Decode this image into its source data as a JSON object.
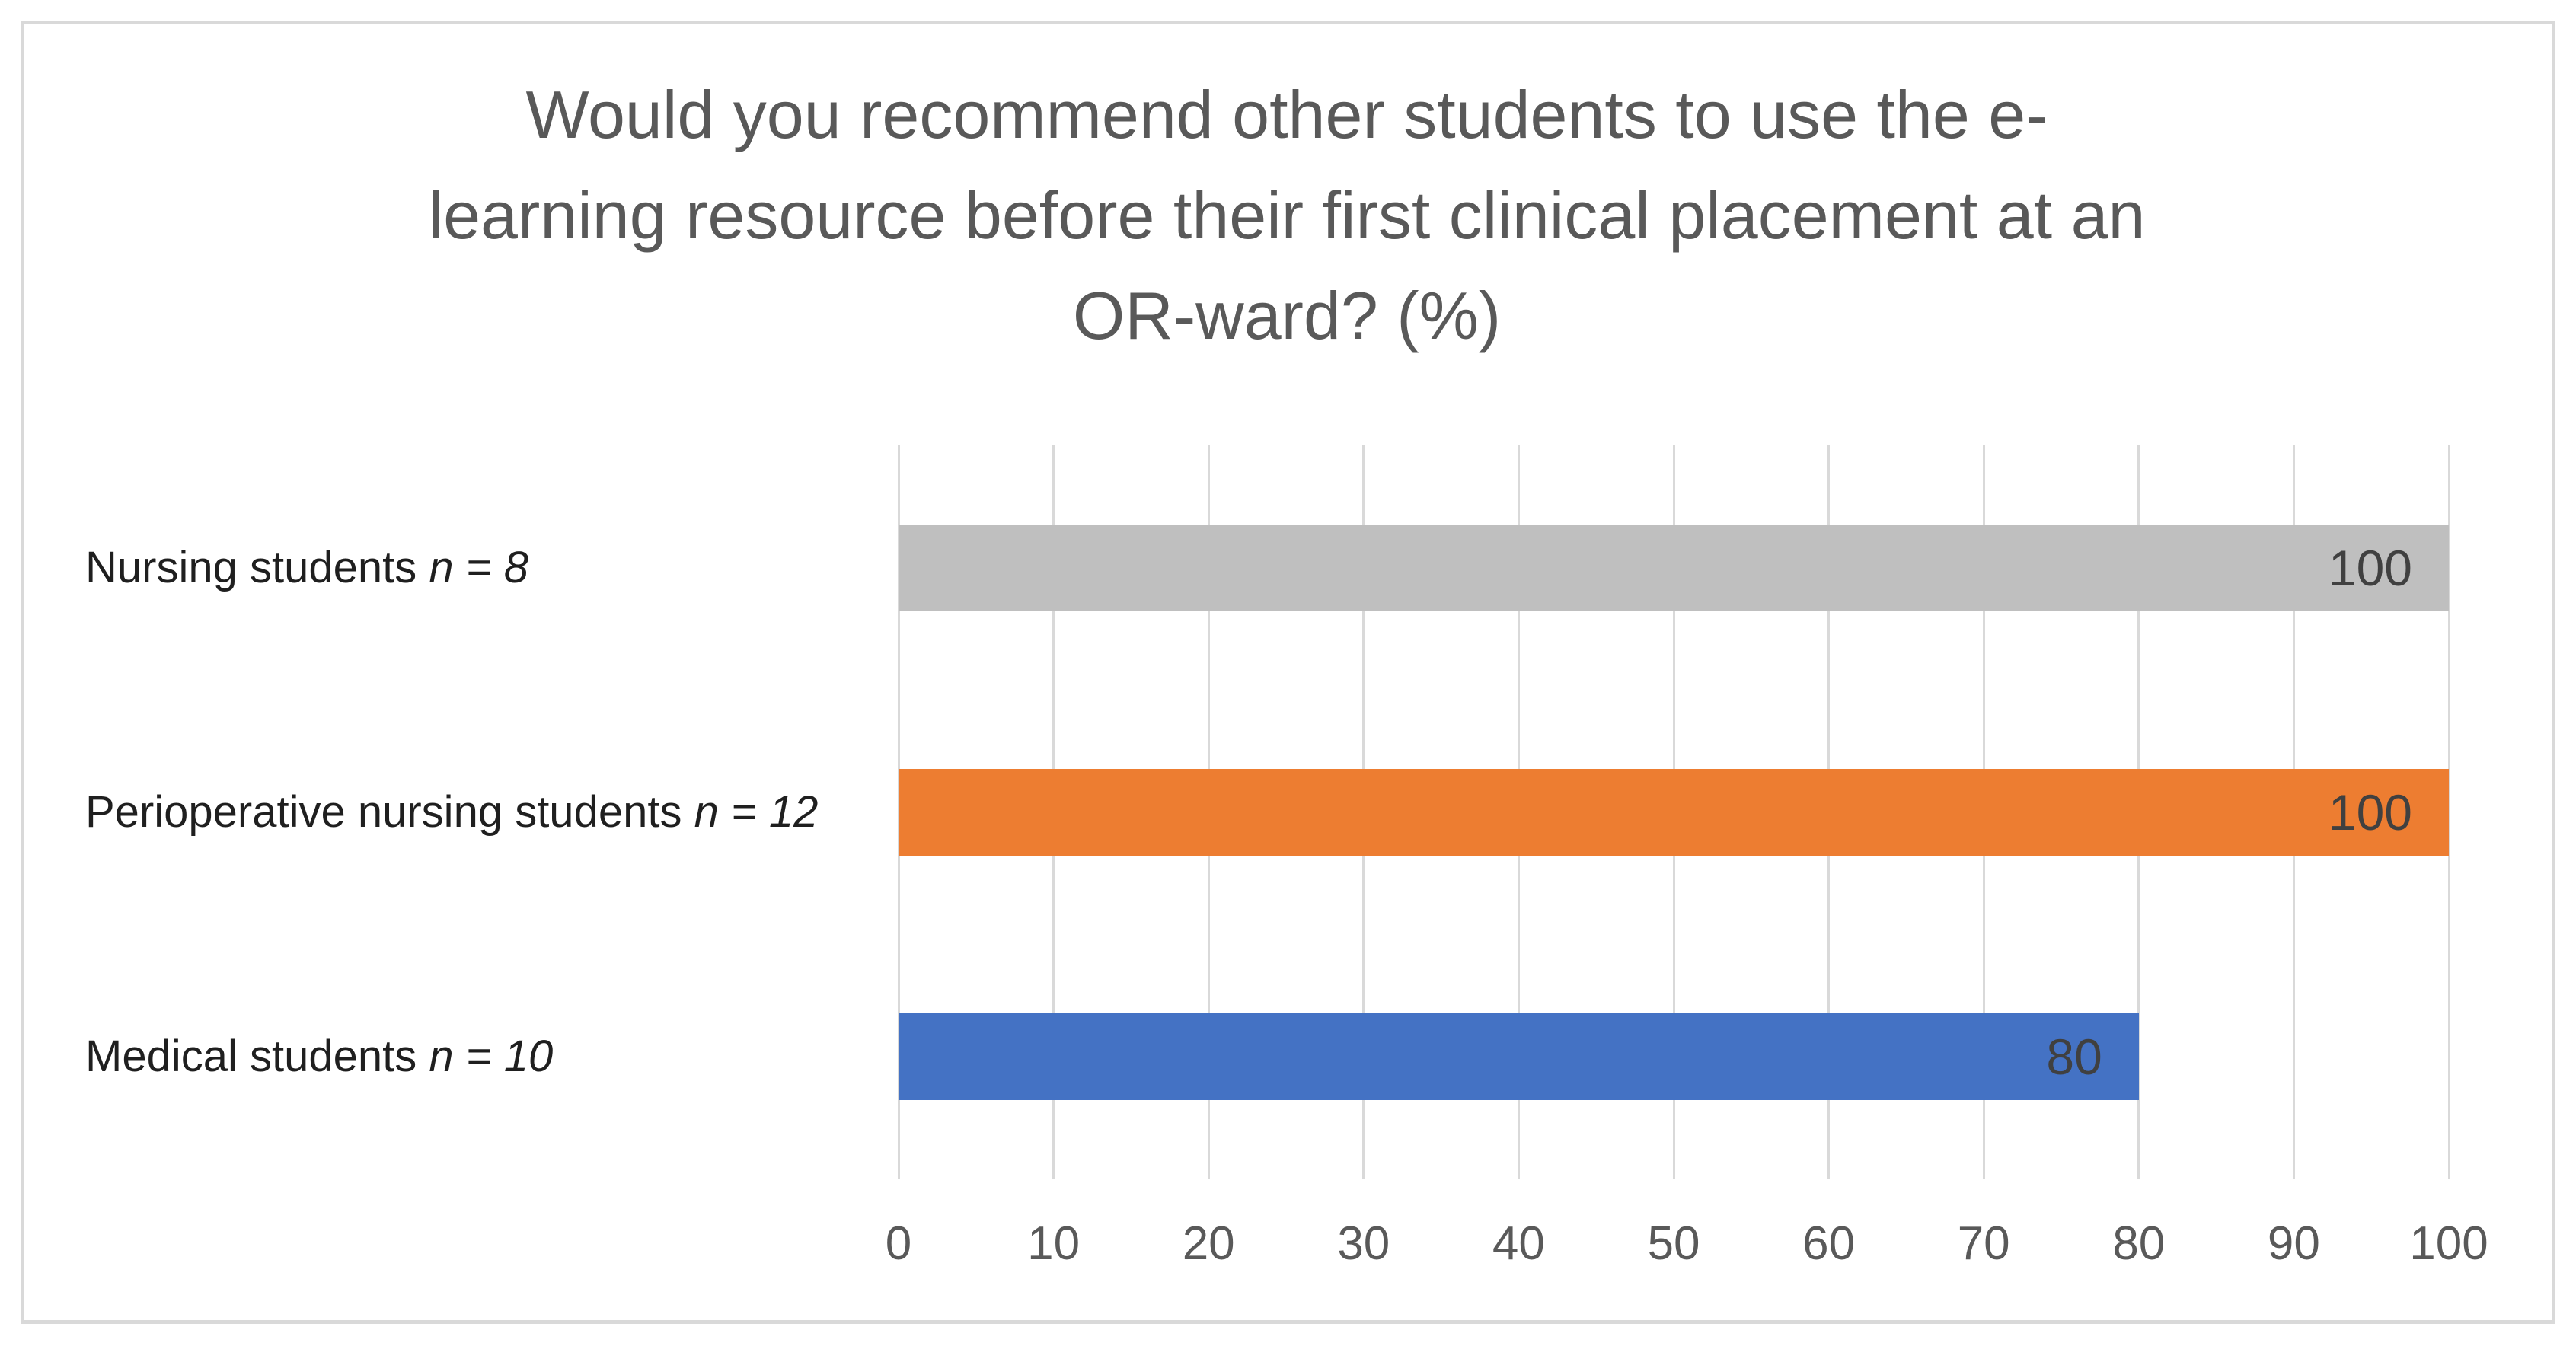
{
  "chart_data": {
    "type": "bar",
    "orientation": "horizontal",
    "title": "Would you recommend other students to use the e-learning resource before their first clinical placement at an OR-ward? (%)",
    "title_lines": [
      "Would you recommend other students to use the e-",
      "learning resource before their first clinical placement at an",
      "OR-ward? (%)"
    ],
    "categories": [
      "Nursing students n = 8",
      "Perioperative nursing students n = 12",
      "Medical students n = 10"
    ],
    "bars": [
      {
        "label": "Nursing students",
        "n_label": "n = 8",
        "value": 100,
        "value_label": "100",
        "color": "#BFBFBF"
      },
      {
        "label": "Perioperative nursing students",
        "n_label": "n = 12",
        "value": 100,
        "value_label": "100",
        "color": "#ED7D31"
      },
      {
        "label": "Medical students",
        "n_label": "n = 10",
        "value": 80,
        "value_label": "80",
        "color": "#4472C4"
      }
    ],
    "values": [
      100,
      100,
      80
    ],
    "x_axis": {
      "min": 0,
      "max": 100,
      "tick_interval": 10,
      "tick_labels": [
        "0",
        "10",
        "20",
        "30",
        "40",
        "50",
        "60",
        "70",
        "80",
        "90",
        "100"
      ]
    },
    "xlabel": "",
    "ylabel": "",
    "grid": true,
    "legend": false,
    "data_label_position": "inside-end",
    "colors": {
      "background": "#FFFFFF",
      "frame_border": "#D9D9D9",
      "gridline": "#D9D9D9",
      "title_text": "#595959",
      "tick_label_text": "#595959",
      "category_label_text": "#1F1F1F",
      "data_label_text": "#404040"
    }
  }
}
